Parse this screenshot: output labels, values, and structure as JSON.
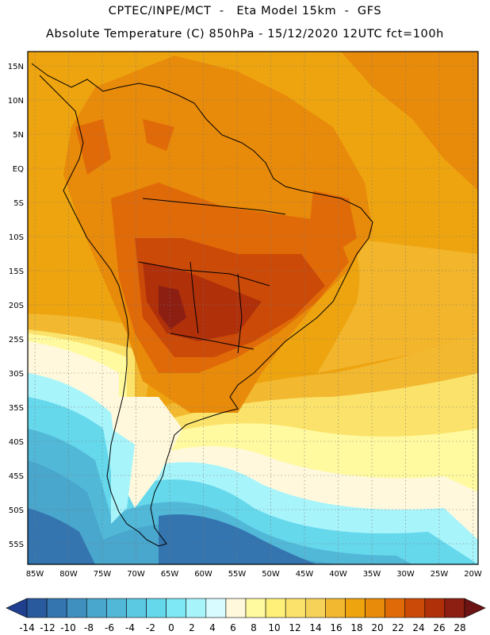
{
  "header": {
    "line1": "CPTEC/INPE/MCT  -   Eta Model 15km  -  GFS",
    "line2": "Absolute Temperature (C) 850hPa - 15/12/2020 12UTC fct=100h"
  },
  "map": {
    "lat_labels": [
      "15N",
      "10N",
      "5N",
      "EQ",
      "5S",
      "10S",
      "15S",
      "20S",
      "25S",
      "30S",
      "35S",
      "40S",
      "45S",
      "50S",
      "55S"
    ],
    "lon_labels": [
      "85W",
      "80W",
      "75W",
      "70W",
      "65W",
      "60W",
      "55W",
      "50W",
      "45W",
      "40W",
      "35W",
      "30W",
      "25W",
      "20W"
    ],
    "region": "South America"
  },
  "colorbar": {
    "labels": [
      "-14",
      "-12",
      "-10",
      "-8",
      "-6",
      "-4",
      "-2",
      "0",
      "2",
      "4",
      "6",
      "8",
      "10",
      "12",
      "14",
      "16",
      "18",
      "20",
      "22",
      "24",
      "26",
      "28"
    ],
    "colors": [
      "#1f3f8f",
      "#2a5a9e",
      "#3475b0",
      "#3f8fbf",
      "#49a6cc",
      "#52b8d8",
      "#5cc9e3",
      "#66d8ec",
      "#7ee8f5",
      "#a8f4fb",
      "#d7fbff",
      "#fff8dc",
      "#fffaa0",
      "#fff07a",
      "#fbe36b",
      "#f7d259",
      "#f2b830",
      "#eea40f",
      "#e88a0a",
      "#e06a08",
      "#cc4a08",
      "#b0300a",
      "#8c1e12",
      "#6c1414"
    ]
  },
  "colors": {
    "ocean_warm": "#eea40f",
    "land_hot": "#cc4a08",
    "land_hottest": "#8c1e12",
    "cold_south": "#3475b0"
  }
}
